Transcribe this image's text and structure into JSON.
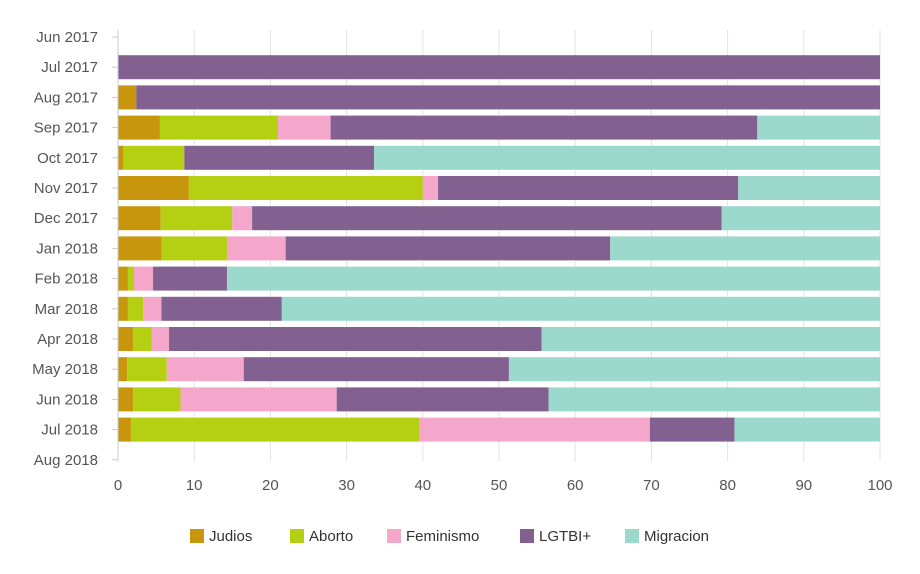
{
  "chart_data": {
    "type": "bar",
    "orientation": "horizontal",
    "stacked": true,
    "xlim": [
      0,
      100
    ],
    "xticks": [
      0,
      10,
      20,
      30,
      40,
      50,
      60,
      70,
      80,
      90,
      100
    ],
    "grid": true,
    "legend_position": "bottom",
    "categories": [
      "Jun 2017",
      "Jul 2017",
      "Aug 2017",
      "Sep 2017",
      "Oct 2017",
      "Nov 2017",
      "Dec 2017",
      "Jan 2018",
      "Feb 2018",
      "Mar 2018",
      "Apr 2018",
      "May 2018",
      "Jun 2018",
      "Jul 2018",
      "Aug 2018"
    ],
    "series": [
      {
        "name": "Judios",
        "color": "#c8960c",
        "values": [
          0,
          0,
          2.4,
          5.5,
          0.7,
          9.3,
          5.6,
          5.7,
          1.3,
          1.3,
          2.0,
          1.2,
          2.0,
          1.7,
          0
        ]
      },
      {
        "name": "Aborto",
        "color": "#b5cf13",
        "values": [
          0,
          0,
          0,
          15.5,
          8.0,
          30.7,
          9.4,
          8.6,
          0.8,
          2.0,
          2.4,
          5.2,
          6.2,
          37.8,
          0
        ]
      },
      {
        "name": "Feminismo",
        "color": "#f4a7cb",
        "values": [
          0,
          0,
          0,
          6.9,
          0,
          2.0,
          2.6,
          7.7,
          2.5,
          2.4,
          2.3,
          10.1,
          20.5,
          30.3,
          0
        ]
      },
      {
        "name": "LGTBI+",
        "color": "#82608f",
        "values": [
          0,
          100,
          97.6,
          56.0,
          24.9,
          39.4,
          61.6,
          42.6,
          9.7,
          15.8,
          48.9,
          34.8,
          27.8,
          11.1,
          0
        ]
      },
      {
        "name": "Migracion",
        "color": "#9cd9cd",
        "values": [
          0,
          0,
          0,
          16.1,
          66.4,
          18.6,
          20.8,
          35.4,
          85.7,
          78.5,
          44.4,
          48.7,
          43.5,
          19.1,
          0
        ]
      }
    ]
  }
}
